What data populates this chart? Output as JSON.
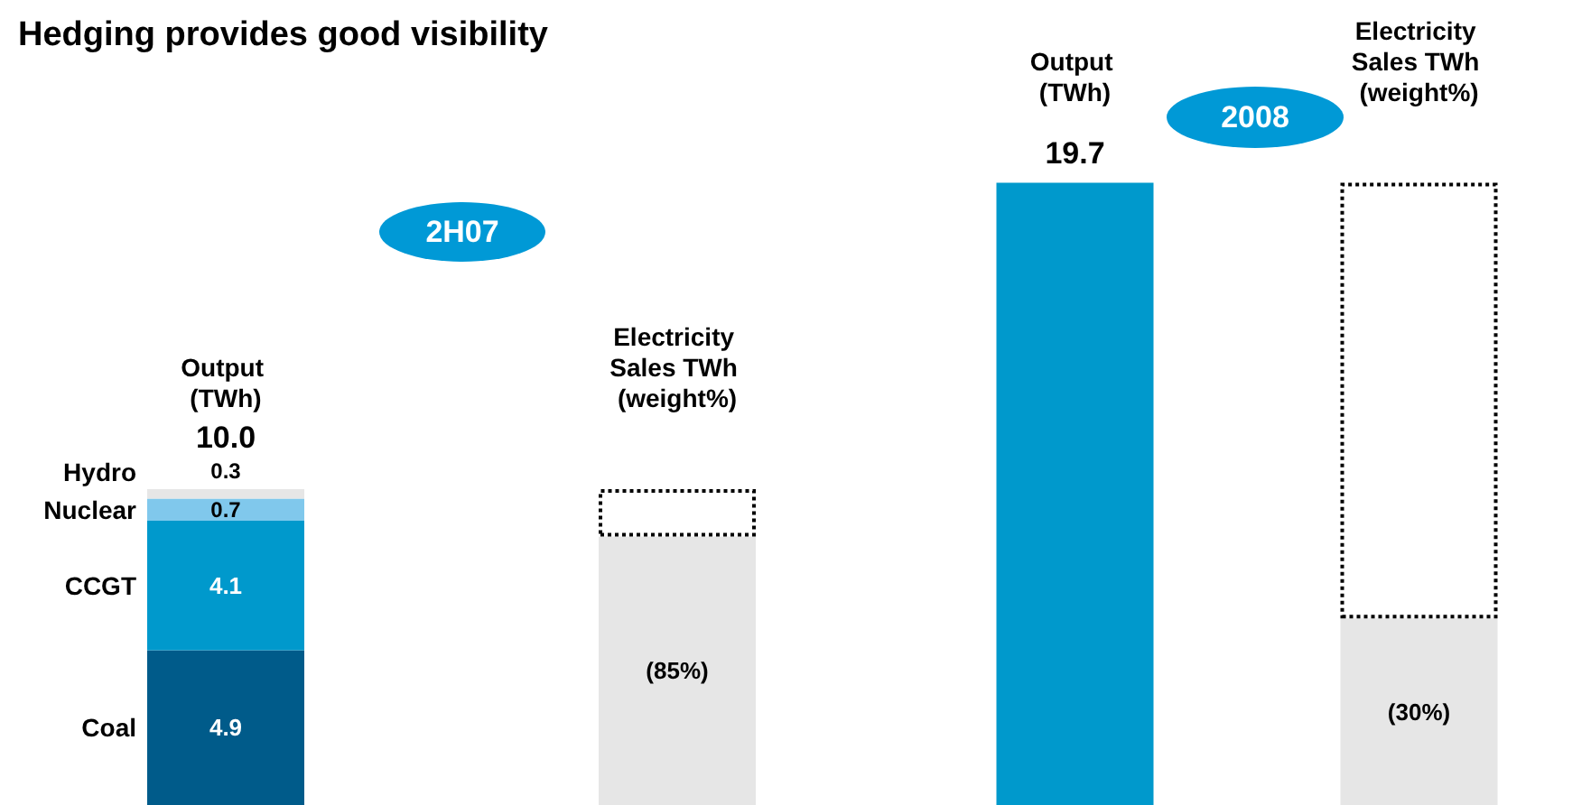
{
  "chart_data": [
    {
      "type": "bar",
      "title": "Hedging provides good visibility",
      "subtitle": "2H07",
      "categories": [
        "Output (TWh)",
        "Electricity Sales TWh (weight%)"
      ],
      "stacked": true,
      "totals": [
        "10.0",
        null
      ],
      "series": [
        {
          "name": "Coal",
          "color": "#005b8a",
          "values": [
            4.9,
            null
          ],
          "value_labels": [
            "4.9",
            null
          ]
        },
        {
          "name": "CCGT",
          "color": "#0099cc",
          "values": [
            4.1,
            null
          ],
          "value_labels": [
            "4.1",
            null
          ]
        },
        {
          "name": "Nuclear",
          "color": "#80c8ec",
          "values": [
            0.7,
            null
          ],
          "value_labels": [
            "0.7",
            null
          ]
        },
        {
          "name": "Hydro",
          "color": "#e6e6e6",
          "values": [
            0.3,
            null
          ],
          "value_labels": [
            "0.3",
            null
          ]
        },
        {
          "color": "#e6e6e6",
          "axis": "y2",
          "values": [
            null,
            85
          ],
          "value_labels": [
            null,
            "(85%)"
          ]
        },
        {
          "color": "#ffffff",
          "axis": "y2",
          "line_style": "dotted",
          "values": [
            null,
            15
          ]
        }
      ]
    },
    {
      "type": "bar",
      "title": "2008",
      "categories": [
        "Output (TWh)",
        "Electricity Sales TWh (weight%)"
      ],
      "stacked": true,
      "series": [
        {
          "color": "#0099cc",
          "values": [
            19.7,
            null
          ],
          "value_labels": [
            "19.7",
            null
          ]
        },
        {
          "color": "#e6e6e6",
          "axis": "y2",
          "values": [
            null,
            30
          ],
          "value_labels": [
            null,
            "(30%)"
          ]
        },
        {
          "color": "#ffffff",
          "axis": "y2",
          "line_style": "dotted",
          "values": [
            null,
            70
          ]
        }
      ]
    }
  ]
}
